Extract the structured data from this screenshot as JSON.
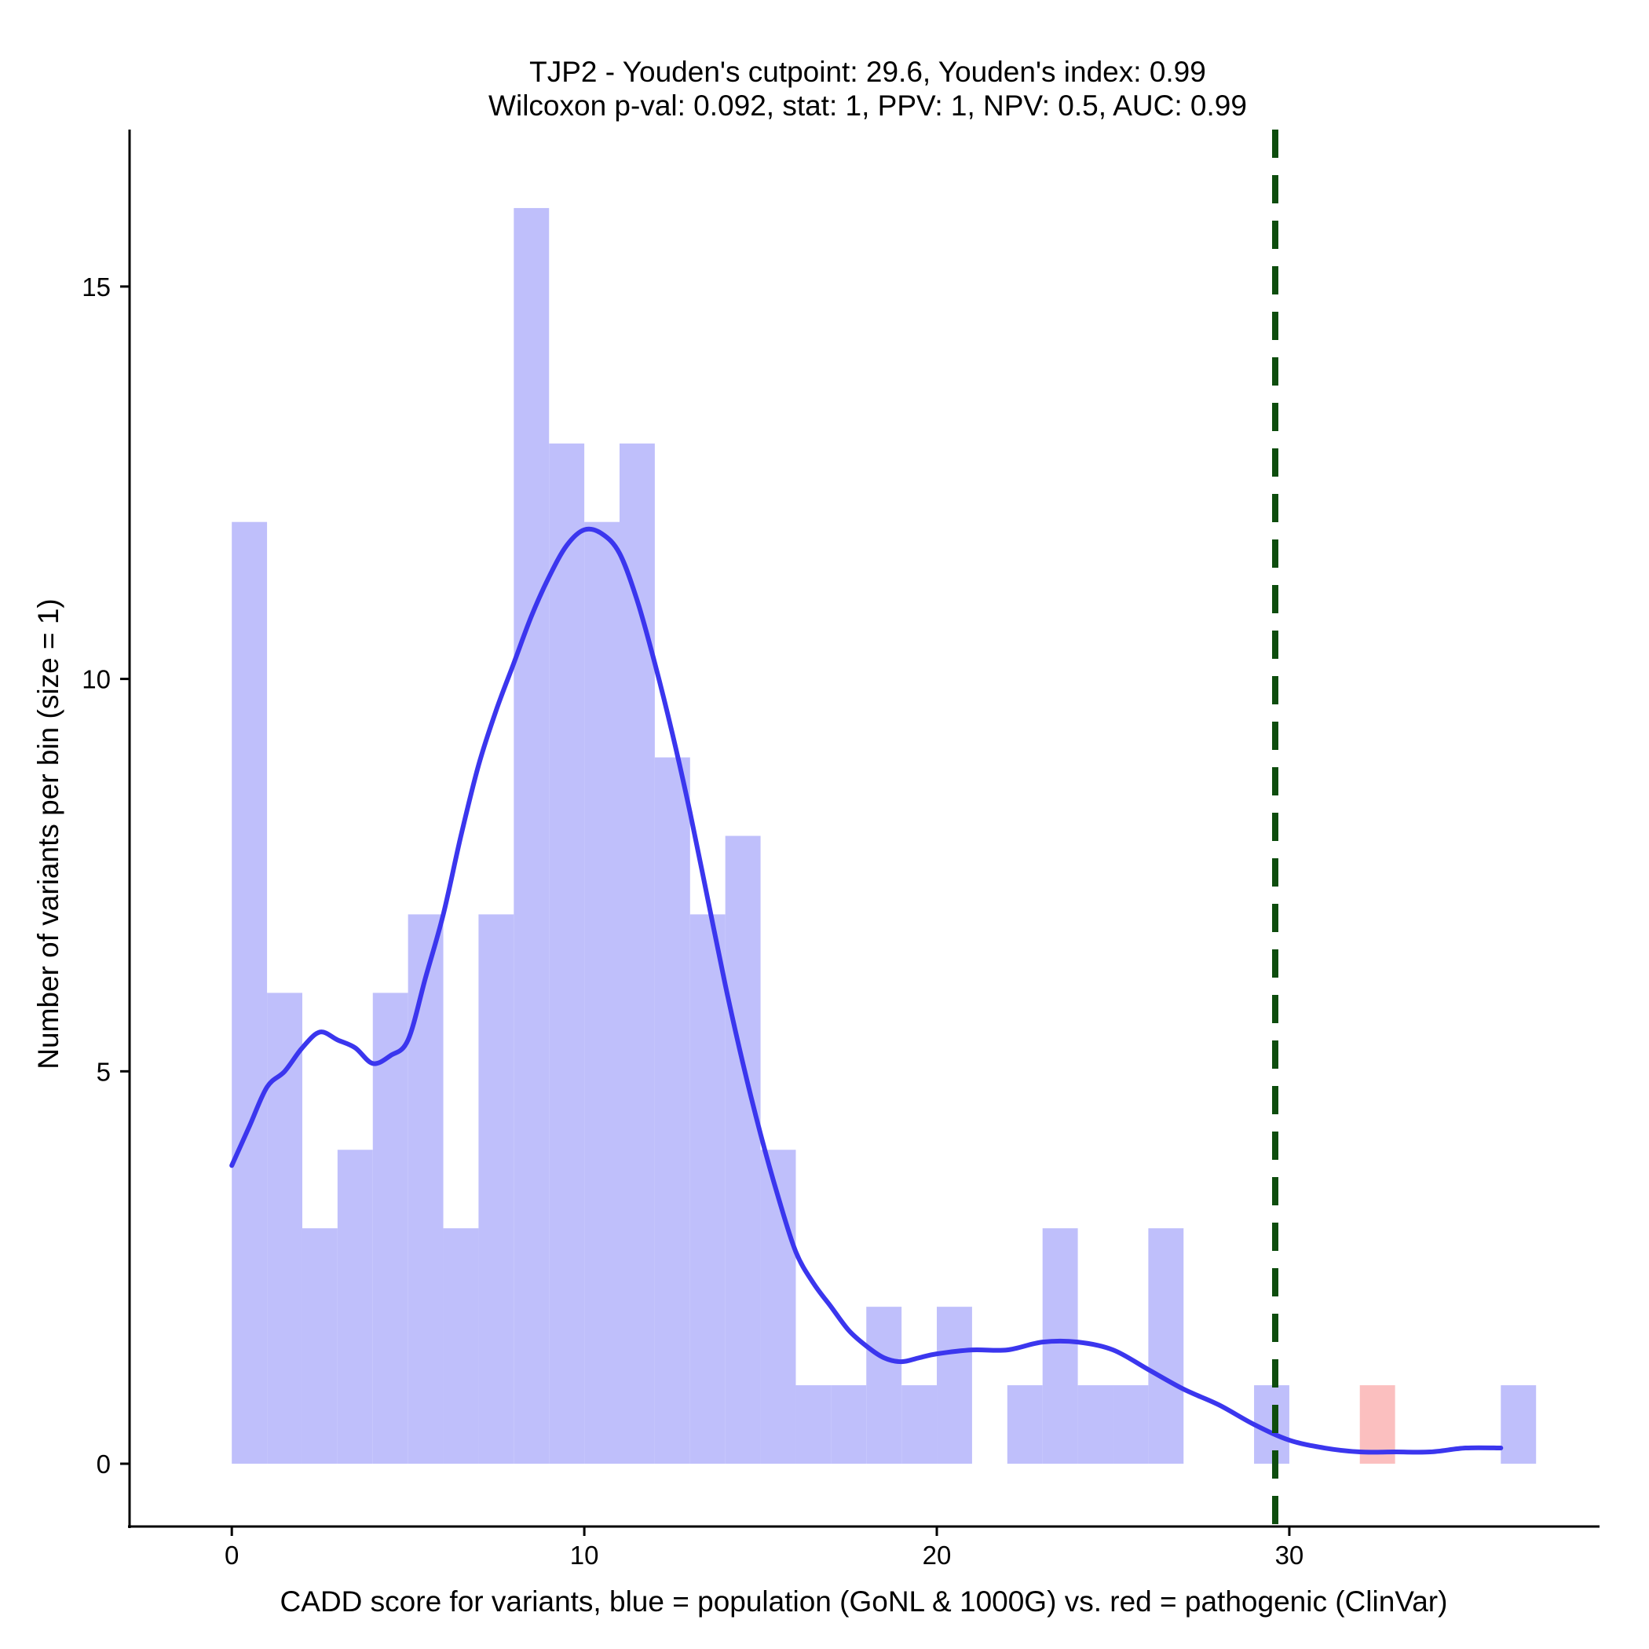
{
  "chart_data": {
    "type": "bar",
    "title": [
      "TJP2 - Youden's cutpoint: 29.6, Youden's index: 0.99",
      "Wilcoxon p-val: 0.092, stat: 1, PPV: 1, NPV: 0.5, AUC: 0.99"
    ],
    "xlabel": "CADD score for variants, blue = population (GoNL & 1000G) vs. red = pathogenic (ClinVar)",
    "ylabel": "Number of variants per bin (size = 1)",
    "xlim": [
      -2.9,
      38.8
    ],
    "ylim": [
      -0.8,
      17.0
    ],
    "xticks": [
      0,
      10,
      20,
      30
    ],
    "xtick_labels": [
      "0",
      "10",
      "20",
      "30"
    ],
    "yticks": [
      0,
      5,
      10,
      15
    ],
    "ytick_labels": [
      "0",
      "5",
      "10",
      "15"
    ],
    "bin_size": 1,
    "series": [
      {
        "name": "population (GoNL & 1000G)",
        "color": "#bfbffb",
        "bins": [
          {
            "x0": 0,
            "count": 12
          },
          {
            "x0": 1,
            "count": 6
          },
          {
            "x0": 2,
            "count": 3
          },
          {
            "x0": 3,
            "count": 4
          },
          {
            "x0": 4,
            "count": 6
          },
          {
            "x0": 5,
            "count": 7
          },
          {
            "x0": 6,
            "count": 3
          },
          {
            "x0": 7,
            "count": 7
          },
          {
            "x0": 8,
            "count": 16
          },
          {
            "x0": 9,
            "count": 13
          },
          {
            "x0": 10,
            "count": 12
          },
          {
            "x0": 11,
            "count": 13
          },
          {
            "x0": 12,
            "count": 9
          },
          {
            "x0": 13,
            "count": 7
          },
          {
            "x0": 14,
            "count": 8
          },
          {
            "x0": 15,
            "count": 4
          },
          {
            "x0": 16,
            "count": 1
          },
          {
            "x0": 17,
            "count": 1
          },
          {
            "x0": 18,
            "count": 2
          },
          {
            "x0": 19,
            "count": 1
          },
          {
            "x0": 20,
            "count": 2
          },
          {
            "x0": 22,
            "count": 1
          },
          {
            "x0": 23,
            "count": 3
          },
          {
            "x0": 24,
            "count": 1
          },
          {
            "x0": 25,
            "count": 1
          },
          {
            "x0": 26,
            "count": 3
          },
          {
            "x0": 29,
            "count": 1
          },
          {
            "x0": 36,
            "count": 1
          }
        ]
      },
      {
        "name": "pathogenic (ClinVar)",
        "color": "#fbbfbf",
        "bins": [
          {
            "x0": 32,
            "count": 1
          }
        ]
      }
    ],
    "density_curve": {
      "color": "#3b36ee",
      "x": [
        0,
        0.5,
        1,
        1.5,
        2,
        2.5,
        3,
        3.5,
        4,
        4.5,
        5,
        5.5,
        6,
        6.5,
        7,
        7.5,
        8,
        8.5,
        9,
        9.5,
        10,
        10.5,
        11,
        11.5,
        12,
        12.5,
        13,
        13.5,
        14,
        14.5,
        15,
        15.5,
        16,
        16.5,
        17,
        17.5,
        18,
        18.5,
        19,
        19.5,
        20,
        21,
        22,
        23,
        24,
        25,
        26,
        27,
        28,
        29,
        30,
        31,
        32,
        33,
        34,
        35,
        36
      ],
      "y": [
        3.8,
        4.3,
        4.8,
        5.0,
        5.3,
        5.5,
        5.4,
        5.3,
        5.1,
        5.2,
        5.4,
        6.2,
        7.0,
        8.0,
        8.9,
        9.6,
        10.2,
        10.8,
        11.3,
        11.7,
        11.9,
        11.85,
        11.6,
        11.0,
        10.2,
        9.3,
        8.3,
        7.2,
        6.1,
        5.1,
        4.2,
        3.4,
        2.7,
        2.3,
        2.0,
        1.7,
        1.5,
        1.35,
        1.3,
        1.35,
        1.4,
        1.45,
        1.45,
        1.55,
        1.55,
        1.45,
        1.2,
        0.95,
        0.75,
        0.5,
        0.3,
        0.2,
        0.15,
        0.15,
        0.15,
        0.2,
        0.2
      ]
    },
    "cutpoint": {
      "x": 29.6,
      "color": "#0e4d0e",
      "style": "dashed"
    }
  }
}
